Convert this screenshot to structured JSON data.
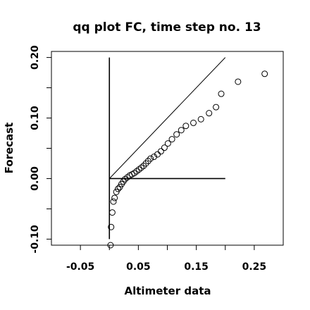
{
  "chart_data": {
    "type": "scatter",
    "title": "qq plot FC, time step no. 13",
    "xlabel": "Altimeter data",
    "ylabel": "Forecast",
    "xlim": [
      -0.1,
      0.3
    ],
    "ylim": [
      -0.11,
      0.21
    ],
    "x_ticks": [
      -0.05,
      0.05,
      0.15,
      0.25
    ],
    "x_tick_labels": [
      "-0.05",
      "0.05",
      "0.15",
      "0.25"
    ],
    "y_ticks": [
      -0.1,
      0.0,
      0.1,
      0.2
    ],
    "y_tick_labels": [
      "-0.10",
      "0.00",
      "0.10",
      "0.20"
    ],
    "x_minor_ticks": [
      0.0,
      0.1,
      0.2
    ],
    "y_minor_ticks": [
      -0.05,
      0.05,
      0.15
    ],
    "grid": false,
    "reference_lines": [
      {
        "kind": "identity",
        "x": [
          0.0,
          0.2
        ],
        "y": [
          0.0,
          0.2
        ]
      },
      {
        "kind": "vertical",
        "x": [
          0.0,
          0.0
        ],
        "y": [
          -0.1,
          0.2
        ]
      },
      {
        "kind": "horizontal",
        "x": [
          0.0,
          0.2
        ],
        "y": [
          0.0,
          0.0
        ]
      }
    ],
    "points": [
      {
        "x": 0.002,
        "y": -0.11
      },
      {
        "x": 0.003,
        "y": -0.08
      },
      {
        "x": 0.005,
        "y": -0.056
      },
      {
        "x": 0.007,
        "y": -0.038
      },
      {
        "x": 0.009,
        "y": -0.032
      },
      {
        "x": 0.012,
        "y": -0.022
      },
      {
        "x": 0.015,
        "y": -0.017
      },
      {
        "x": 0.018,
        "y": -0.014
      },
      {
        "x": 0.021,
        "y": -0.009
      },
      {
        "x": 0.024,
        "y": -0.005
      },
      {
        "x": 0.027,
        "y": -0.001
      },
      {
        "x": 0.031,
        "y": 0.002
      },
      {
        "x": 0.035,
        "y": 0.005
      },
      {
        "x": 0.039,
        "y": 0.007
      },
      {
        "x": 0.043,
        "y": 0.009
      },
      {
        "x": 0.047,
        "y": 0.012
      },
      {
        "x": 0.051,
        "y": 0.015
      },
      {
        "x": 0.055,
        "y": 0.018
      },
      {
        "x": 0.059,
        "y": 0.021
      },
      {
        "x": 0.063,
        "y": 0.025
      },
      {
        "x": 0.067,
        "y": 0.029
      },
      {
        "x": 0.071,
        "y": 0.033
      },
      {
        "x": 0.077,
        "y": 0.036
      },
      {
        "x": 0.083,
        "y": 0.04
      },
      {
        "x": 0.089,
        "y": 0.045
      },
      {
        "x": 0.095,
        "y": 0.051
      },
      {
        "x": 0.101,
        "y": 0.058
      },
      {
        "x": 0.108,
        "y": 0.065
      },
      {
        "x": 0.116,
        "y": 0.073
      },
      {
        "x": 0.124,
        "y": 0.08
      },
      {
        "x": 0.132,
        "y": 0.087
      },
      {
        "x": 0.145,
        "y": 0.092
      },
      {
        "x": 0.158,
        "y": 0.098
      },
      {
        "x": 0.172,
        "y": 0.108
      },
      {
        "x": 0.184,
        "y": 0.118
      },
      {
        "x": 0.193,
        "y": 0.14
      },
      {
        "x": 0.222,
        "y": 0.16
      },
      {
        "x": 0.268,
        "y": 0.173
      }
    ]
  }
}
